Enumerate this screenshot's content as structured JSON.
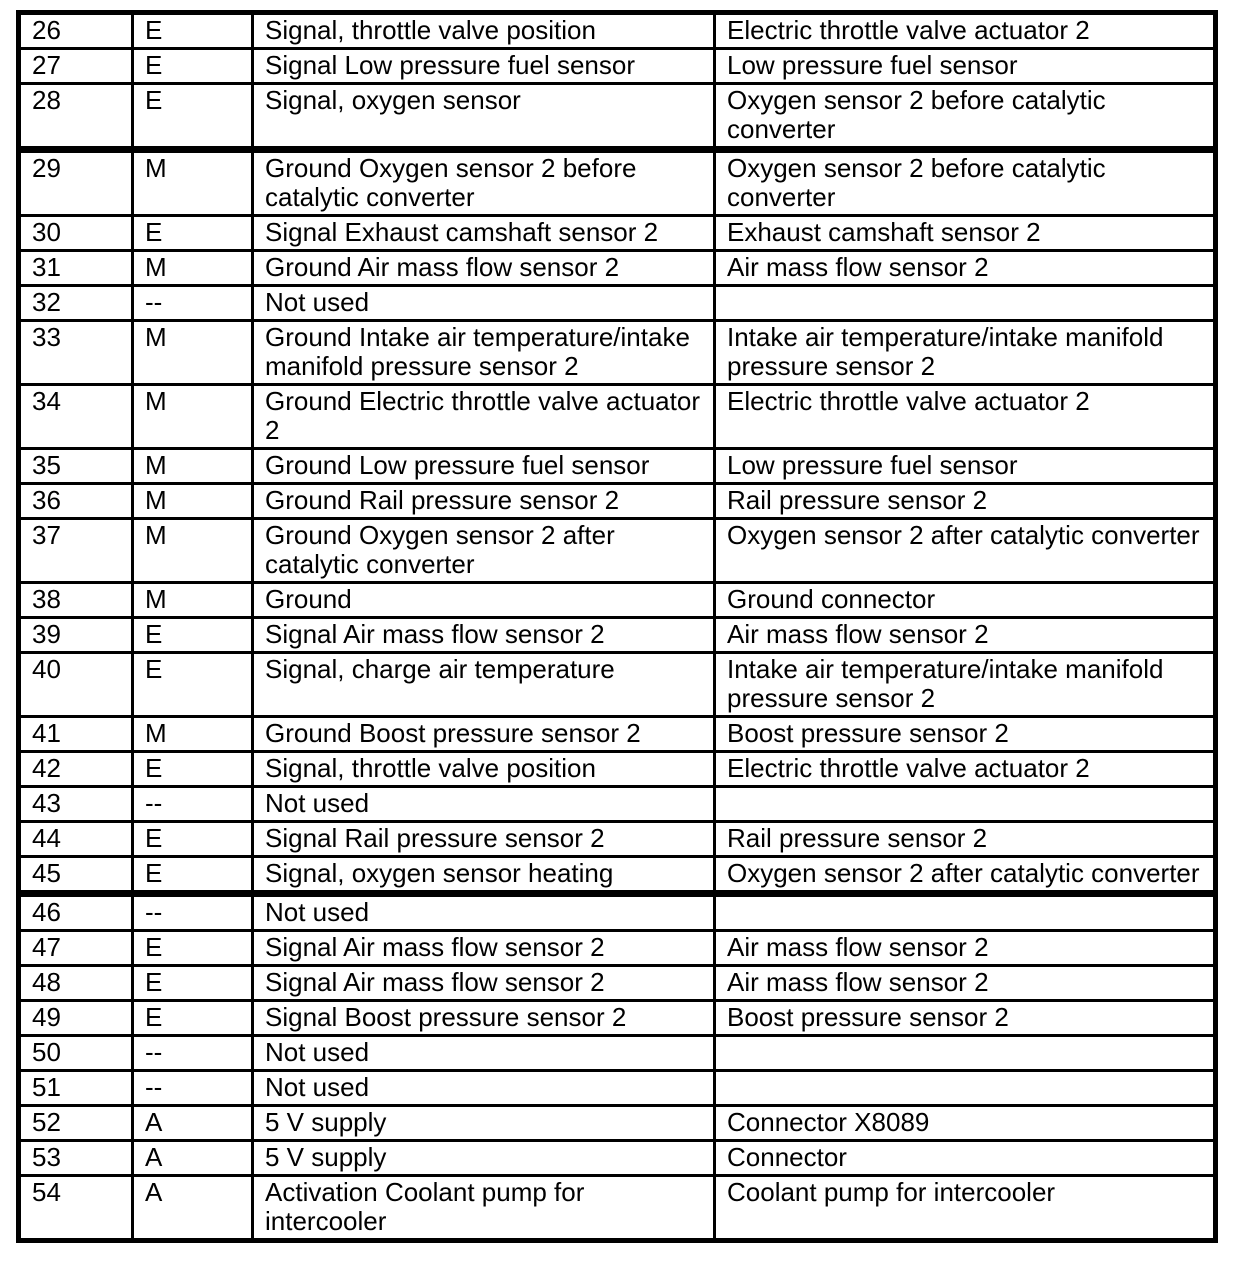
{
  "colors": {
    "border": "#000000",
    "text": "#000000",
    "page_background": "#ffffff"
  },
  "table": {
    "rows": [
      {
        "pin": "26",
        "type": "E",
        "description": "Signal, throttle valve position",
        "component": "Electric throttle valve actuator 2"
      },
      {
        "pin": "27",
        "type": "E",
        "description": "Signal Low pressure fuel sensor",
        "component": "Low pressure fuel sensor"
      },
      {
        "pin": "28",
        "type": "E",
        "description": "Signal, oxygen sensor",
        "component": "Oxygen sensor 2 before catalytic converter",
        "heavy_border_below": true
      },
      {
        "pin": "29",
        "type": "M",
        "description": "Ground Oxygen sensor 2 before catalytic converter",
        "component": "Oxygen sensor 2 before catalytic converter"
      },
      {
        "pin": "30",
        "type": "E",
        "description": "Signal Exhaust camshaft sensor 2",
        "component": "Exhaust camshaft sensor 2"
      },
      {
        "pin": "31",
        "type": "M",
        "description": "Ground Air mass flow sensor 2",
        "component": "Air mass flow sensor 2"
      },
      {
        "pin": "32",
        "type": "--",
        "description": "Not used",
        "component": ""
      },
      {
        "pin": "33",
        "type": "M",
        "description": "Ground Intake air temperature/intake manifold pressure sensor 2",
        "component": "Intake air temperature/intake manifold pressure sensor 2"
      },
      {
        "pin": "34",
        "type": "M",
        "description": "Ground Electric throttle valve actuator 2",
        "component": "Electric throttle valve actuator 2"
      },
      {
        "pin": "35",
        "type": "M",
        "description": "Ground Low pressure fuel sensor",
        "component": "Low pressure fuel sensor"
      },
      {
        "pin": "36",
        "type": "M",
        "description": "Ground Rail pressure sensor 2",
        "component": "Rail pressure sensor 2"
      },
      {
        "pin": "37",
        "type": "M",
        "description": "Ground Oxygen sensor 2 after catalytic converter",
        "component": "Oxygen sensor 2 after catalytic converter"
      },
      {
        "pin": "38",
        "type": "M",
        "description": "Ground",
        "component": "Ground connector"
      },
      {
        "pin": "39",
        "type": "E",
        "description": "Signal Air mass flow sensor 2",
        "component": "Air mass flow sensor 2"
      },
      {
        "pin": "40",
        "type": "E",
        "description": "Signal, charge air temperature",
        "component": "Intake air temperature/intake manifold pressure sensor 2"
      },
      {
        "pin": "41",
        "type": "M",
        "description": "Ground Boost pressure sensor 2",
        "component": "Boost pressure sensor 2"
      },
      {
        "pin": "42",
        "type": "E",
        "description": "Signal, throttle valve position",
        "component": "Electric throttle valve actuator 2"
      },
      {
        "pin": "43",
        "type": "--",
        "description": "Not used",
        "component": ""
      },
      {
        "pin": "44",
        "type": "E",
        "description": "Signal Rail pressure sensor 2",
        "component": "Rail pressure sensor 2"
      },
      {
        "pin": "45",
        "type": "E",
        "description": "Signal, oxygen sensor heating",
        "component": "Oxygen sensor 2 after catalytic converter",
        "heavy_border_below": true
      },
      {
        "pin": "46",
        "type": "--",
        "description": "Not used",
        "component": ""
      },
      {
        "pin": "47",
        "type": "E",
        "description": "Signal Air mass flow sensor 2",
        "component": "Air mass flow sensor 2"
      },
      {
        "pin": "48",
        "type": "E",
        "description": "Signal Air mass flow sensor 2",
        "component": "Air mass flow sensor 2"
      },
      {
        "pin": "49",
        "type": "E",
        "description": "Signal Boost pressure sensor 2",
        "component": "Boost pressure sensor 2"
      },
      {
        "pin": "50",
        "type": "--",
        "description": "Not used",
        "component": ""
      },
      {
        "pin": "51",
        "type": "--",
        "description": "Not used",
        "component": ""
      },
      {
        "pin": "52",
        "type": "A",
        "description": "5 V supply",
        "component": "Connector X8089"
      },
      {
        "pin": "53",
        "type": "A",
        "description": "5 V supply",
        "component": "Connector"
      },
      {
        "pin": "54",
        "type": "A",
        "description": "Activation Coolant pump for intercooler",
        "component": "Coolant pump for intercooler"
      }
    ]
  }
}
